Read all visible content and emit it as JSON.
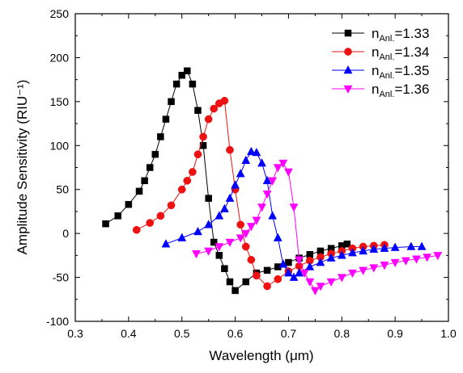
{
  "chart_data": {
    "type": "line",
    "xlabel": "Wavelength (μm)",
    "ylabel": "Amplitude Sensitivity (RIU⁻¹)",
    "xlim": [
      0.3,
      1.0
    ],
    "ylim": [
      -100,
      250
    ],
    "xticks": [
      "0.3",
      "0.4",
      "0.5",
      "0.6",
      "0.7",
      "0.8",
      "0.9",
      "1.0"
    ],
    "yticks": [
      "-100",
      "-50",
      "0",
      "50",
      "100",
      "150",
      "200",
      "250"
    ],
    "grid": false,
    "legend_position": "top-right",
    "series": [
      {
        "name": "n_Anl.=1.33",
        "name_main": "n",
        "name_sub": "Anl.",
        "name_rest": "=1.33",
        "color": "#000000",
        "marker": "square",
        "x": [
          0.357,
          0.38,
          0.4,
          0.42,
          0.43,
          0.44,
          0.45,
          0.46,
          0.47,
          0.48,
          0.49,
          0.5,
          0.51,
          0.52,
          0.53,
          0.54,
          0.55,
          0.56,
          0.57,
          0.58,
          0.59,
          0.6,
          0.62,
          0.64,
          0.66,
          0.68,
          0.7,
          0.72,
          0.74,
          0.76,
          0.78,
          0.8,
          0.81
        ],
        "y": [
          11,
          20,
          33,
          48,
          60,
          75,
          90,
          110,
          130,
          150,
          170,
          180,
          185,
          170,
          140,
          100,
          40,
          -10,
          -25,
          -40,
          -55,
          -65,
          -55,
          -45,
          -42,
          -38,
          -33,
          -28,
          -24,
          -20,
          -17,
          -14,
          -12
        ]
      },
      {
        "name": "n_Anl.=1.34",
        "name_main": "n",
        "name_sub": "Anl.",
        "name_rest": "=1.34",
        "color": "#ee1111",
        "marker": "circle",
        "x": [
          0.415,
          0.44,
          0.46,
          0.48,
          0.5,
          0.51,
          0.52,
          0.53,
          0.54,
          0.55,
          0.56,
          0.57,
          0.58,
          0.59,
          0.6,
          0.61,
          0.62,
          0.63,
          0.64,
          0.66,
          0.68,
          0.7,
          0.72,
          0.74,
          0.76,
          0.78,
          0.8,
          0.82,
          0.84,
          0.86,
          0.88
        ],
        "y": [
          4,
          12,
          20,
          32,
          50,
          60,
          70,
          90,
          110,
          130,
          142,
          148,
          151,
          95,
          50,
          10,
          -15,
          -30,
          -48,
          -60,
          -52,
          -43,
          -37,
          -31,
          -27,
          -23,
          -20,
          -17,
          -15,
          -14,
          -13
        ]
      },
      {
        "name": "n_Anl.=1.35",
        "name_main": "n",
        "name_sub": "Anl.",
        "name_rest": "=1.35",
        "color": "#0000ff",
        "marker": "triangle-up",
        "x": [
          0.47,
          0.5,
          0.53,
          0.55,
          0.57,
          0.58,
          0.59,
          0.6,
          0.61,
          0.62,
          0.63,
          0.64,
          0.65,
          0.66,
          0.67,
          0.68,
          0.69,
          0.7,
          0.71,
          0.72,
          0.74,
          0.76,
          0.78,
          0.8,
          0.82,
          0.84,
          0.86,
          0.88,
          0.9,
          0.93,
          0.95
        ],
        "y": [
          -12,
          -5,
          2,
          10,
          20,
          28,
          40,
          55,
          68,
          83,
          93,
          92,
          80,
          60,
          20,
          -5,
          -35,
          -45,
          -50,
          -45,
          -38,
          -33,
          -28,
          -25,
          -22,
          -20,
          -18,
          -17,
          -16,
          -15,
          -15
        ]
      },
      {
        "name": "n_Anl.=1.36",
        "name_main": "n",
        "name_sub": "Anl.",
        "name_rest": "=1.36",
        "color": "#ff00ff",
        "marker": "triangle-down",
        "x": [
          0.527,
          0.55,
          0.57,
          0.59,
          0.61,
          0.62,
          0.63,
          0.64,
          0.65,
          0.66,
          0.67,
          0.68,
          0.69,
          0.7,
          0.71,
          0.72,
          0.73,
          0.74,
          0.75,
          0.76,
          0.78,
          0.8,
          0.82,
          0.84,
          0.86,
          0.88,
          0.9,
          0.92,
          0.94,
          0.96,
          0.98
        ],
        "y": [
          -23,
          -20,
          -15,
          -10,
          -5,
          0,
          8,
          15,
          30,
          45,
          60,
          75,
          80,
          70,
          30,
          -30,
          -45,
          -55,
          -65,
          -60,
          -55,
          -50,
          -45,
          -42,
          -39,
          -36,
          -33,
          -31,
          -29,
          -27,
          -25
        ]
      }
    ]
  }
}
